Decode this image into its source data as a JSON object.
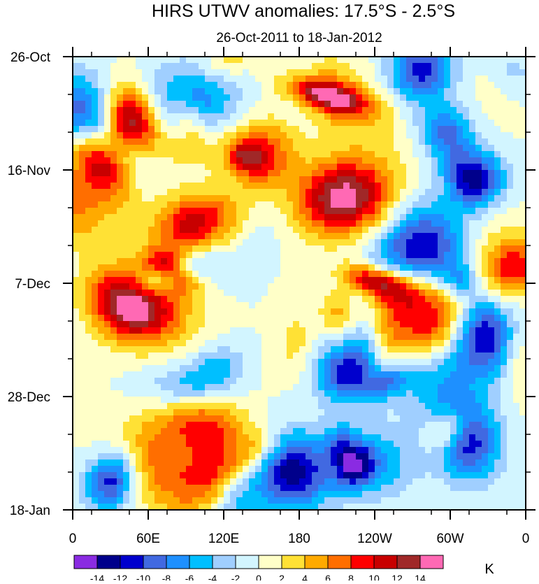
{
  "chart_data": {
    "type": "heatmap",
    "title": "HIRS UTWV anomalies: 17.5°S - 2.5°S",
    "subtitle": "26-Oct-2011 to 18-Jan-2012",
    "x_ticks": [
      "0",
      "60E",
      "120E",
      "180",
      "120W",
      "60W",
      "0"
    ],
    "x_range": [
      0,
      360
    ],
    "y_ticks": [
      "26-Oct",
      "16-Nov",
      "7-Dec",
      "28-Dec",
      "18-Jan"
    ],
    "y_range_days": [
      0,
      84
    ],
    "colorbar": {
      "unit": "K",
      "labels": [
        "-14",
        "-12",
        "-10",
        "-8",
        "-6",
        "-4",
        "-2",
        "0",
        "2",
        "4",
        "6",
        "8",
        "10",
        "12",
        "14"
      ],
      "colors": [
        "#8a2be2",
        "#00008b",
        "#0000cd",
        "#4169e1",
        "#1e90ff",
        "#00bfff",
        "#a0cfff",
        "#d2f5ff",
        "#ffffc8",
        "#ffe135",
        "#ffaa00",
        "#ff6e00",
        "#ff0000",
        "#c80000",
        "#a02828",
        "#ff69b4"
      ]
    },
    "values_note": "Field of upper-tropospheric water vapor anomalies (K) by longitude (x) and date (y); dominant range about -14 to 14"
  }
}
